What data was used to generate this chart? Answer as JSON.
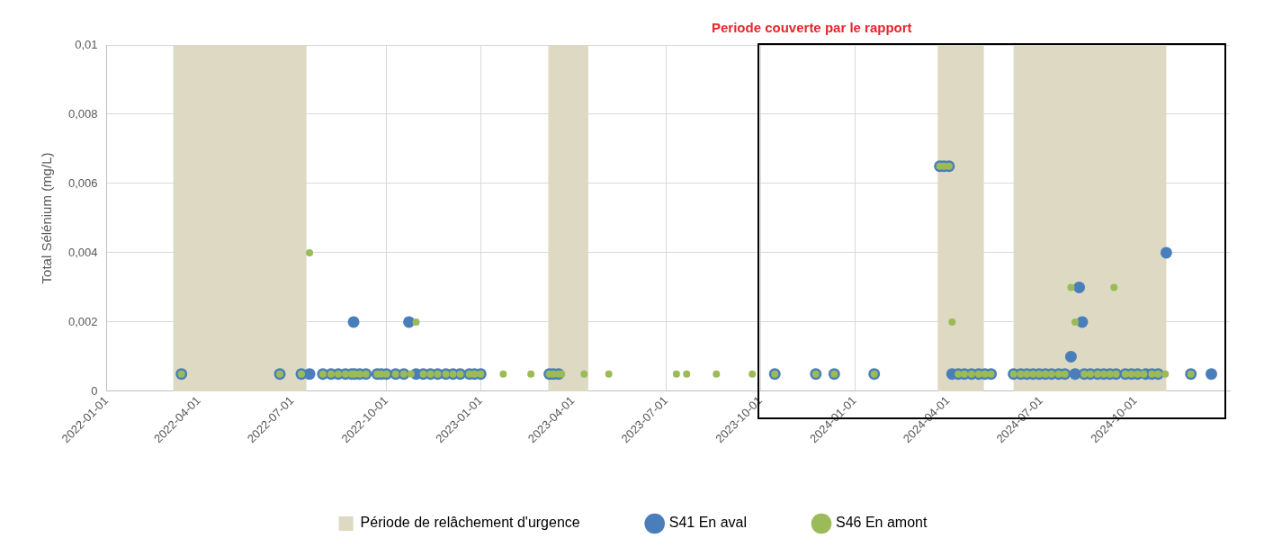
{
  "chart_data": {
    "type": "scatter",
    "ylabel": "Total Sélénium (mg/L)",
    "xlim": [
      "2022-01-01",
      "2025-01-01"
    ],
    "xticks": [
      "2022-01-01",
      "2022-04-01",
      "2022-07-01",
      "2022-10-01",
      "2023-01-01",
      "2023-04-01",
      "2023-07-01",
      "2023-10-01",
      "2024-01-01",
      "2024-04-01",
      "2024-07-01",
      "2024-10-01"
    ],
    "ylim": [
      0,
      0.01
    ],
    "yticks": [
      0,
      {
        "value": 0.002,
        "label": "0,002"
      },
      {
        "value": 0.004,
        "label": "0,004"
      },
      {
        "value": 0.006,
        "label": "0,006"
      },
      {
        "value": 0.008,
        "label": "0,008"
      },
      {
        "value": 0.01,
        "label": "0,01"
      }
    ],
    "grid": true,
    "legend": "bottom",
    "marker": "circle",
    "bands": [
      {
        "axis": "x",
        "from": "2022-03-07",
        "to": "2022-07-15",
        "label": "Période de relâchement d'urgence",
        "color": "#ddd9c3"
      },
      {
        "axis": "x",
        "from": "2023-03-08",
        "to": "2023-04-16",
        "color": "#ddd9c3"
      },
      {
        "axis": "x",
        "from": "2024-03-22",
        "to": "2024-05-06",
        "color": "#ddd9c3"
      },
      {
        "axis": "x",
        "from": "2024-06-04",
        "to": "2024-10-31",
        "color": "#ddd9c3"
      }
    ],
    "annotations": [
      "Periode couverte par le rapport"
    ],
    "series": [
      {
        "name": "S41 En aval",
        "color": "#4a7ebb",
        "x": [
          "2022-03-15",
          "2022-06-19",
          "2022-07-10",
          "2022-07-18",
          "2022-07-31",
          "2022-08-08",
          "2022-08-15",
          "2022-08-22",
          "2022-08-28",
          "2022-08-30",
          "2022-08-31",
          "2022-09-05",
          "2022-09-11",
          "2022-09-22",
          "2022-09-26",
          "2022-10-01",
          "2022-10-10",
          "2022-10-18",
          "2022-10-23",
          "2022-10-30",
          "2022-11-06",
          "2022-11-13",
          "2022-11-20",
          "2022-11-28",
          "2022-12-05",
          "2022-12-12",
          "2022-12-21",
          "2022-12-26",
          "2023-01-01",
          "2023-03-09",
          "2023-03-13",
          "2023-03-18",
          "2023-10-15",
          "2023-11-24",
          "2023-12-12",
          "2024-01-20",
          "2024-03-24",
          "2024-03-28",
          "2024-04-02",
          "2024-04-05",
          "2024-04-11",
          "2024-04-17",
          "2024-04-24",
          "2024-05-01",
          "2024-05-07",
          "2024-05-13",
          "2024-06-04",
          "2024-06-11",
          "2024-06-17",
          "2024-06-23",
          "2024-06-29",
          "2024-07-05",
          "2024-07-11",
          "2024-07-18",
          "2024-07-24",
          "2024-07-30",
          "2024-08-03",
          "2024-08-07",
          "2024-08-10",
          "2024-08-12",
          "2024-08-18",
          "2024-08-25",
          "2024-08-31",
          "2024-09-06",
          "2024-09-12",
          "2024-09-21",
          "2024-09-27",
          "2024-10-03",
          "2024-10-11",
          "2024-10-17",
          "2024-10-23",
          "2024-10-31",
          "2024-11-24",
          "2024-12-14"
        ],
        "values": [
          0.0005,
          0.0005,
          0.0005,
          0.0005,
          0.0005,
          0.0005,
          0.0005,
          0.0005,
          0.0005,
          0.002,
          0.0005,
          0.0005,
          0.0005,
          0.0005,
          0.0005,
          0.0005,
          0.0005,
          0.0005,
          0.002,
          0.0005,
          0.0005,
          0.0005,
          0.0005,
          0.0005,
          0.0005,
          0.0005,
          0.0005,
          0.0005,
          0.0005,
          0.0005,
          0.0005,
          0.0005,
          0.0005,
          0.0005,
          0.0005,
          0.0005,
          0.0065,
          0.0065,
          0.0065,
          0.0005,
          0.0005,
          0.0005,
          0.0005,
          0.0005,
          0.0005,
          0.0005,
          0.0005,
          0.0005,
          0.0005,
          0.0005,
          0.0005,
          0.0005,
          0.0005,
          0.0005,
          0.0005,
          0.001,
          0.0005,
          0.003,
          0.002,
          0.0005,
          0.0005,
          0.0005,
          0.0005,
          0.0005,
          0.0005,
          0.0005,
          0.0005,
          0.0005,
          0.0005,
          0.0005,
          0.0005,
          0.004,
          0.0005,
          0.0005
        ]
      },
      {
        "name": "S46 En amont",
        "color": "#9bbb59",
        "x": [
          "2022-03-15",
          "2022-06-19",
          "2022-07-10",
          "2022-07-18",
          "2022-07-31",
          "2022-08-08",
          "2022-08-15",
          "2022-08-22",
          "2022-08-28",
          "2022-08-31",
          "2022-09-05",
          "2022-09-11",
          "2022-09-22",
          "2022-09-26",
          "2022-10-01",
          "2022-10-10",
          "2022-10-18",
          "2022-10-25",
          "2022-10-30",
          "2022-11-06",
          "2022-11-13",
          "2022-11-20",
          "2022-11-28",
          "2022-12-05",
          "2022-12-12",
          "2022-12-21",
          "2022-12-26",
          "2023-01-01",
          "2023-01-23",
          "2023-02-19",
          "2023-03-09",
          "2023-03-13",
          "2023-03-18",
          "2023-03-21",
          "2023-04-12",
          "2023-05-06",
          "2023-07-11",
          "2023-07-21",
          "2023-08-19",
          "2023-09-23",
          "2023-10-15",
          "2023-11-24",
          "2023-12-12",
          "2024-01-20",
          "2024-03-24",
          "2024-03-28",
          "2024-04-02",
          "2024-04-05",
          "2024-04-11",
          "2024-04-17",
          "2024-04-24",
          "2024-05-01",
          "2024-05-07",
          "2024-05-13",
          "2024-06-04",
          "2024-06-11",
          "2024-06-17",
          "2024-06-23",
          "2024-06-29",
          "2024-07-05",
          "2024-07-11",
          "2024-07-18",
          "2024-07-24",
          "2024-07-30",
          "2024-08-03",
          "2024-08-12",
          "2024-08-18",
          "2024-08-25",
          "2024-08-31",
          "2024-09-06",
          "2024-09-10",
          "2024-09-12",
          "2024-09-21",
          "2024-09-27",
          "2024-10-03",
          "2024-10-09",
          "2024-10-17",
          "2024-10-23",
          "2024-10-30",
          "2024-11-24"
        ],
        "values": [
          0.0005,
          0.0005,
          0.0005,
          0.004,
          0.0005,
          0.0005,
          0.0005,
          0.0005,
          0.0005,
          0.0005,
          0.0005,
          0.0005,
          0.0005,
          0.0005,
          0.0005,
          0.0005,
          0.0005,
          0.0005,
          0.002,
          0.0005,
          0.0005,
          0.0005,
          0.0005,
          0.0005,
          0.0005,
          0.0005,
          0.0005,
          0.0005,
          0.0005,
          0.0005,
          0.0005,
          0.0005,
          0.0005,
          0.0005,
          0.0005,
          0.0005,
          0.0005,
          0.0005,
          0.0005,
          0.0005,
          0.0005,
          0.0005,
          0.0005,
          0.0005,
          0.0065,
          0.0065,
          0.0065,
          0.002,
          0.0005,
          0.0005,
          0.0005,
          0.0005,
          0.0005,
          0.0005,
          0.0005,
          0.0005,
          0.0005,
          0.0005,
          0.0005,
          0.0005,
          0.0005,
          0.0005,
          0.0005,
          0.003,
          0.002,
          0.0005,
          0.0005,
          0.0005,
          0.0005,
          0.0005,
          0.003,
          0.0005,
          0.0005,
          0.0005,
          0.0005,
          0.0005,
          0.0005,
          0.0005,
          0.0005,
          0.0005
        ]
      }
    ]
  }
}
